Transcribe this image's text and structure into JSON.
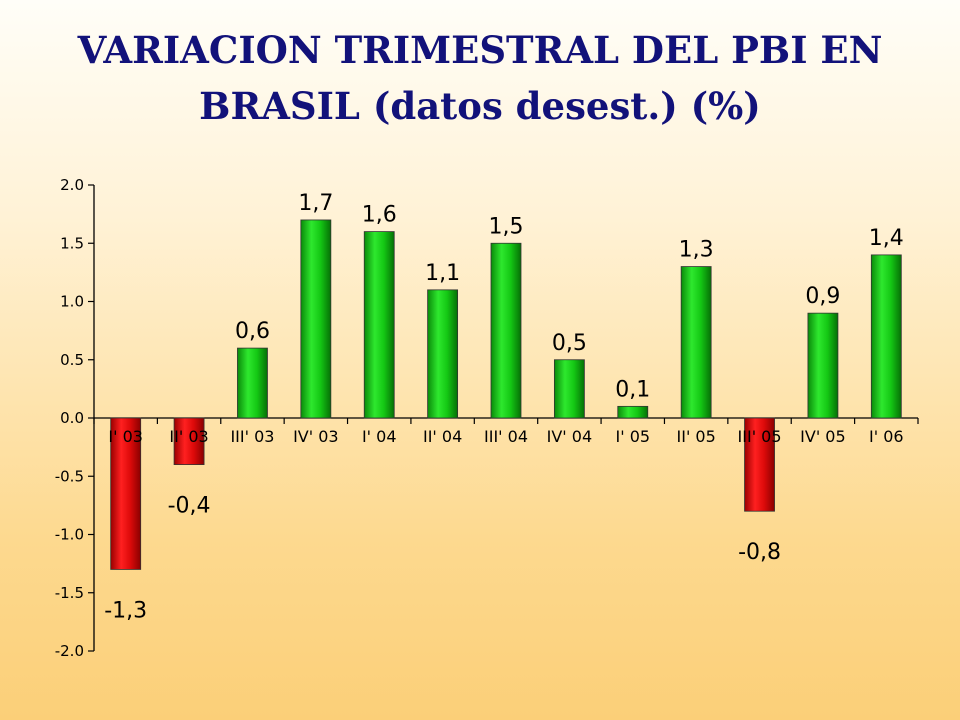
{
  "title_line1": "VARIACION TRIMESTRAL DEL PBI EN",
  "title_line2": "BRASIL (datos desest.) (%)",
  "chart_data": {
    "type": "bar",
    "title": "VARIACION TRIMESTRAL DEL PBI EN BRASIL (datos desest.) (%)",
    "xlabel": "",
    "ylabel": "",
    "ylim": [
      -2.0,
      2.0
    ],
    "yticks": [
      2.0,
      1.5,
      1.0,
      0.5,
      0.0,
      -0.5,
      -1.0,
      -1.5,
      -2.0
    ],
    "ytick_labels": [
      "2.0",
      "1.5",
      "1.0",
      "0.5",
      "0.0",
      "-0.5",
      "-1.0",
      "-1.5",
      "-2.0"
    ],
    "categories": [
      "I' 03",
      "II' 03",
      "III' 03",
      "IV' 03",
      "I' 04",
      "II' 04",
      "III' 04",
      "IV' 04",
      "I' 05",
      "II' 05",
      "III' 05",
      "IV' 05",
      "I' 06"
    ],
    "values": [
      -1.3,
      -0.4,
      0.6,
      1.7,
      1.6,
      1.1,
      1.5,
      0.5,
      0.1,
      1.3,
      -0.8,
      0.9,
      1.4
    ],
    "data_labels": [
      "-1,3",
      "-0,4",
      "0,6",
      "1,7",
      "1,6",
      "1,1",
      "1,5",
      "0,5",
      "0,1",
      "1,3",
      "-0,8",
      "0,9",
      "1,4"
    ],
    "colors": {
      "positive": "#14c814",
      "negative": "#dd0a0a"
    },
    "grid": false,
    "legend": "none"
  }
}
